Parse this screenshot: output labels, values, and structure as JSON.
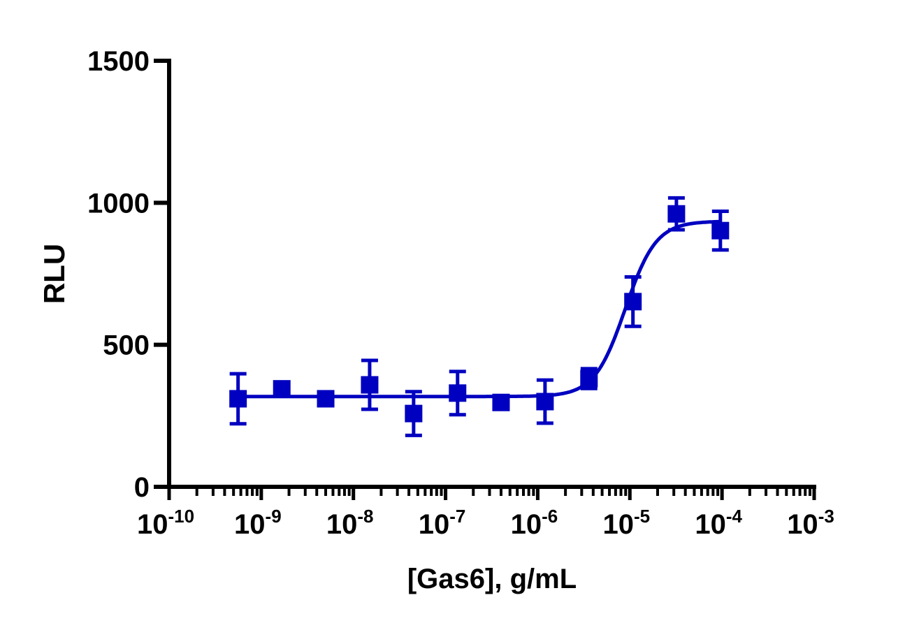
{
  "chart_data": {
    "type": "scatter",
    "title": "",
    "xlabel": "[Gas6], g/mL",
    "ylabel": "RLU",
    "xscale": "log",
    "xlim": [
      1e-10,
      0.001
    ],
    "ylim": [
      0,
      1500
    ],
    "xticks": [
      -10,
      -9,
      -8,
      -7,
      -6,
      -5,
      -4,
      -3
    ],
    "xtick_base": "10",
    "yticks": [
      0,
      500,
      1000,
      1500
    ],
    "grid": false,
    "legend": "none",
    "color": "#0000C0",
    "marker": "square",
    "series": [
      {
        "x": [
          5.6e-10,
          1.67e-09,
          5e-09,
          1.5e-08,
          4.5e-08,
          1.35e-07,
          4e-07,
          1.2e-06,
          3.6e-06,
          1.08e-05,
          3.2e-05,
          9.6e-05
        ],
        "y": [
          310,
          345,
          310,
          359,
          258,
          330,
          297,
          300,
          381,
          652,
          961,
          902
        ],
        "error": [
          88,
          0,
          0,
          86,
          77,
          76,
          20,
          76,
          35,
          87,
          56,
          68
        ]
      }
    ],
    "fit": {
      "model": "sigmoidal dose-response",
      "bottom": 318,
      "top": 935,
      "logEC50": -5.05,
      "hill": 2.6
    }
  }
}
